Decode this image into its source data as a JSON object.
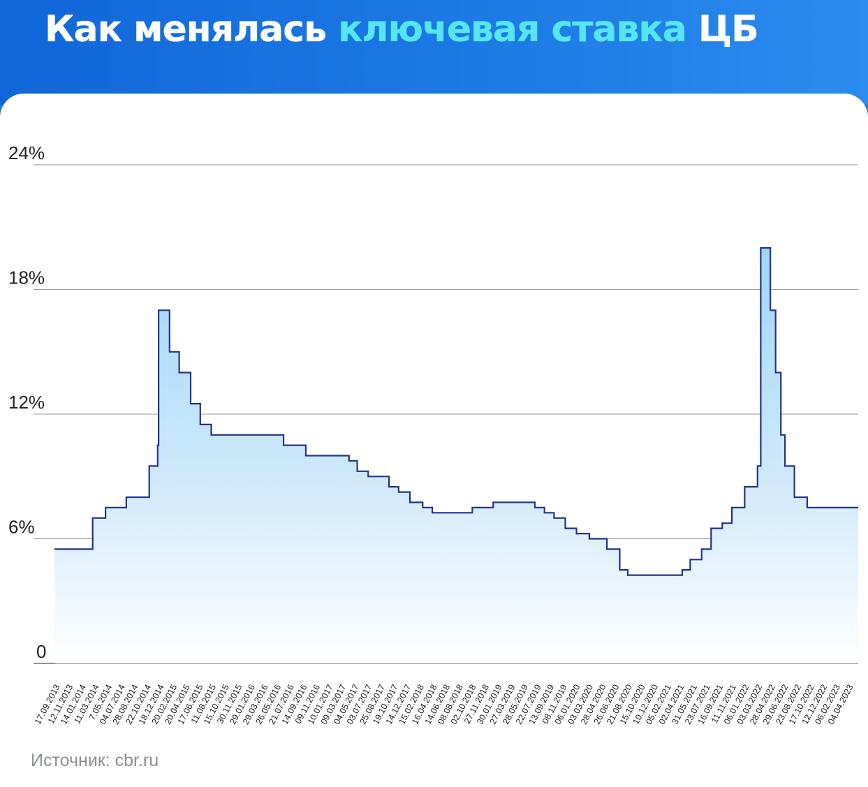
{
  "header": {
    "title_part1": "Как менялась ",
    "title_accent": "ключевая ставка",
    "title_part2": " ЦБ"
  },
  "source": "Источник: cbr.ru",
  "colors": {
    "background": "#1b78e0",
    "accent_text": "#55e6f2",
    "line": "#25328e",
    "fill_top": "#9fd6f7",
    "fill_bottom": "#ffffff",
    "grid": "#9a9a9a"
  },
  "chart_data": {
    "type": "area",
    "step": true,
    "title": "",
    "xlabel": "",
    "ylabel": "",
    "ylim": [
      0,
      24
    ],
    "yticks": [
      0,
      6,
      12,
      18,
      24
    ],
    "ytick_labels": [
      "0",
      "6%",
      "12%",
      "18%",
      "24%"
    ],
    "grid": true,
    "x_labels": [
      "17.09.2013",
      "12.11.2013",
      "14.01.2014",
      "11.03.2014",
      "7.05.2014",
      "04.07.2014",
      "28.08.2014",
      "22.10.2014",
      "18.12.2014",
      "20.02.2015",
      "20.04.2015",
      "17.06.2015",
      "11.08.2015",
      "15.10.2015",
      "30.11.2015",
      "29.01.2016",
      "29.03.2016",
      "26.05.2016",
      "21.07.2016",
      "14.09.2016",
      "09.11.2016",
      "10.01.2017",
      "09.03.2017",
      "04.05.2017",
      "03.07.2017",
      "25.08.2017",
      "19.10.2017",
      "14.12.2017",
      "15.02.2018",
      "16.04.2018",
      "14.06.2018",
      "08.08.2018",
      "02.10.2018",
      "27.11.2018",
      "30.01.2019",
      "27.03.2019",
      "28.05.2019",
      "22.07.2019",
      "13.09.2019",
      "08.11.2019",
      "06.01.2020",
      "03.03.2020",
      "28.04.2020",
      "26.06.2020",
      "21.08.2020",
      "15.10.2020",
      "10.12.2020",
      "05.02.2021",
      "02.04.2021",
      "31.05.2021",
      "23.07.2021",
      "16.09.2021",
      "11.11.2021",
      "06.01.2022",
      "03.03.2022",
      "28.04.2022",
      "29.06.2022",
      "23.08.2022",
      "17.10.2022",
      "12.12.2022",
      "06.02.2023",
      "04.04.2023"
    ],
    "series": [
      {
        "name": "",
        "points": [
          [
            "17.09.2013",
            5.5
          ],
          [
            "03.03.2014",
            7.0
          ],
          [
            "28.04.2014",
            7.5
          ],
          [
            "28.07.2014",
            8.0
          ],
          [
            "05.11.2014",
            9.5
          ],
          [
            "12.12.2014",
            10.5
          ],
          [
            "16.12.2014",
            17.0
          ],
          [
            "02.02.2015",
            15.0
          ],
          [
            "16.03.2015",
            14.0
          ],
          [
            "05.05.2015",
            12.5
          ],
          [
            "16.06.2015",
            11.5
          ],
          [
            "03.08.2015",
            11.0
          ],
          [
            "14.06.2016",
            10.5
          ],
          [
            "19.09.2016",
            10.0
          ],
          [
            "27.03.2017",
            9.75
          ],
          [
            "02.05.2017",
            9.25
          ],
          [
            "19.06.2017",
            9.0
          ],
          [
            "18.09.2017",
            8.5
          ],
          [
            "30.10.2017",
            8.25
          ],
          [
            "18.12.2017",
            7.75
          ],
          [
            "12.02.2018",
            7.5
          ],
          [
            "26.03.2018",
            7.25
          ],
          [
            "17.09.2018",
            7.5
          ],
          [
            "17.12.2018",
            7.75
          ],
          [
            "17.06.2019",
            7.5
          ],
          [
            "29.07.2019",
            7.25
          ],
          [
            "09.09.2019",
            7.0
          ],
          [
            "28.10.2019",
            6.5
          ],
          [
            "16.12.2019",
            6.25
          ],
          [
            "10.02.2020",
            6.0
          ],
          [
            "27.04.2020",
            5.5
          ],
          [
            "22.06.2020",
            4.5
          ],
          [
            "27.07.2020",
            4.25
          ],
          [
            "22.03.2021",
            4.5
          ],
          [
            "26.04.2021",
            5.0
          ],
          [
            "15.06.2021",
            5.5
          ],
          [
            "26.07.2021",
            6.5
          ],
          [
            "13.09.2021",
            6.75
          ],
          [
            "25.10.2021",
            7.5
          ],
          [
            "20.12.2021",
            8.5
          ],
          [
            "14.02.2022",
            9.5
          ],
          [
            "28.02.2022",
            20.0
          ],
          [
            "11.04.2022",
            17.0
          ],
          [
            "04.05.2022",
            14.0
          ],
          [
            "27.05.2022",
            11.0
          ],
          [
            "14.06.2022",
            9.5
          ],
          [
            "25.07.2022",
            8.0
          ],
          [
            "19.09.2022",
            7.5
          ],
          [
            "30.04.2023",
            7.5
          ]
        ]
      }
    ]
  }
}
